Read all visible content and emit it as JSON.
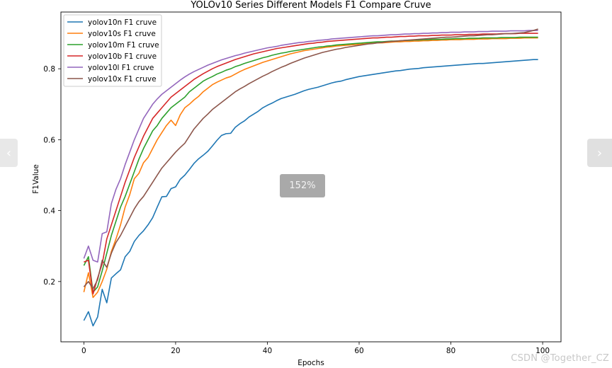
{
  "viewer": {
    "prev_icon": "chevron-left-icon",
    "next_icon": "chevron-right-icon",
    "prev_glyph": "‹",
    "next_glyph": "›",
    "zoom": "152%",
    "watermark": "CSDN @Together_CZ"
  },
  "chart_data": {
    "type": "line",
    "title": "YOLOv10 Series Different Models F1 Compare Cruve",
    "xlabel": "Epochs",
    "ylabel": "F1Value",
    "xlim": [
      -5,
      104
    ],
    "ylim": [
      0.03,
      0.96
    ],
    "xticks": [
      0,
      20,
      40,
      60,
      80,
      100
    ],
    "yticks": [
      0.2,
      0.4,
      0.6,
      0.8
    ],
    "grid": false,
    "legend_position": "top-left",
    "x": [
      0,
      1,
      2,
      3,
      4,
      5,
      6,
      7,
      8,
      9,
      10,
      11,
      12,
      13,
      14,
      15,
      16,
      17,
      18,
      19,
      20,
      21,
      22,
      23,
      24,
      25,
      26,
      27,
      28,
      29,
      30,
      31,
      32,
      33,
      34,
      35,
      36,
      37,
      38,
      39,
      40,
      41,
      42,
      43,
      44,
      45,
      46,
      47,
      48,
      49,
      50,
      51,
      52,
      53,
      54,
      55,
      56,
      57,
      58,
      59,
      60,
      61,
      62,
      63,
      64,
      65,
      66,
      67,
      68,
      69,
      70,
      71,
      72,
      73,
      74,
      75,
      76,
      77,
      78,
      79,
      80,
      81,
      82,
      83,
      84,
      85,
      86,
      87,
      88,
      89,
      90,
      91,
      92,
      93,
      94,
      95,
      96,
      97,
      98,
      99
    ],
    "series": [
      {
        "name": "yolov10n F1 cruve",
        "color": "#1f77b4",
        "values": [
          0.09,
          0.115,
          0.075,
          0.1,
          0.178,
          0.14,
          0.21,
          0.222,
          0.233,
          0.27,
          0.285,
          0.313,
          0.33,
          0.343,
          0.36,
          0.38,
          0.41,
          0.439,
          0.44,
          0.462,
          0.467,
          0.488,
          0.5,
          0.516,
          0.533,
          0.546,
          0.556,
          0.567,
          0.582,
          0.598,
          0.612,
          0.617,
          0.618,
          0.635,
          0.645,
          0.653,
          0.664,
          0.672,
          0.68,
          0.69,
          0.697,
          0.703,
          0.71,
          0.716,
          0.72,
          0.724,
          0.728,
          0.733,
          0.738,
          0.742,
          0.745,
          0.748,
          0.752,
          0.756,
          0.76,
          0.763,
          0.765,
          0.769,
          0.772,
          0.775,
          0.778,
          0.78,
          0.782,
          0.784,
          0.786,
          0.788,
          0.79,
          0.792,
          0.794,
          0.795,
          0.797,
          0.799,
          0.8,
          0.801,
          0.803,
          0.804,
          0.805,
          0.806,
          0.807,
          0.808,
          0.809,
          0.81,
          0.811,
          0.812,
          0.813,
          0.814,
          0.815,
          0.815,
          0.816,
          0.817,
          0.818,
          0.819,
          0.82,
          0.821,
          0.822,
          0.823,
          0.824,
          0.825,
          0.826,
          0.826
        ]
      },
      {
        "name": "yolov10s F1 cruve",
        "color": "#ff7f0e",
        "values": [
          0.17,
          0.225,
          0.155,
          0.17,
          0.2,
          0.235,
          0.285,
          0.32,
          0.36,
          0.41,
          0.445,
          0.49,
          0.505,
          0.535,
          0.55,
          0.575,
          0.6,
          0.62,
          0.64,
          0.655,
          0.64,
          0.67,
          0.69,
          0.7,
          0.712,
          0.722,
          0.735,
          0.745,
          0.755,
          0.762,
          0.768,
          0.774,
          0.778,
          0.785,
          0.792,
          0.798,
          0.803,
          0.808,
          0.813,
          0.818,
          0.822,
          0.826,
          0.83,
          0.834,
          0.838,
          0.842,
          0.845,
          0.848,
          0.851,
          0.853,
          0.855,
          0.857,
          0.859,
          0.861,
          0.862,
          0.864,
          0.865,
          0.866,
          0.867,
          0.868,
          0.869,
          0.87,
          0.871,
          0.872,
          0.873,
          0.873,
          0.874,
          0.875,
          0.876,
          0.876,
          0.877,
          0.877,
          0.878,
          0.878,
          0.879,
          0.879,
          0.88,
          0.88,
          0.881,
          0.881,
          0.882,
          0.882,
          0.882,
          0.883,
          0.883,
          0.883,
          0.884,
          0.884,
          0.884,
          0.885,
          0.885,
          0.885,
          0.885,
          0.886,
          0.886,
          0.886,
          0.887,
          0.887,
          0.887,
          0.887
        ]
      },
      {
        "name": "yolov10m F1 cruve",
        "color": "#2ca02c",
        "values": [
          0.245,
          0.27,
          0.17,
          0.185,
          0.23,
          0.28,
          0.33,
          0.37,
          0.41,
          0.44,
          0.475,
          0.51,
          0.545,
          0.575,
          0.6,
          0.625,
          0.64,
          0.66,
          0.675,
          0.69,
          0.7,
          0.71,
          0.72,
          0.735,
          0.745,
          0.755,
          0.765,
          0.772,
          0.778,
          0.785,
          0.79,
          0.796,
          0.8,
          0.806,
          0.81,
          0.815,
          0.819,
          0.823,
          0.827,
          0.831,
          0.834,
          0.838,
          0.841,
          0.844,
          0.846,
          0.849,
          0.851,
          0.853,
          0.855,
          0.857,
          0.859,
          0.861,
          0.862,
          0.864,
          0.865,
          0.867,
          0.868,
          0.869,
          0.87,
          0.871,
          0.872,
          0.873,
          0.874,
          0.875,
          0.876,
          0.876,
          0.877,
          0.878,
          0.878,
          0.879,
          0.88,
          0.88,
          0.881,
          0.881,
          0.882,
          0.882,
          0.883,
          0.883,
          0.883,
          0.884,
          0.884,
          0.885,
          0.885,
          0.885,
          0.886,
          0.886,
          0.886,
          0.887,
          0.887,
          0.887,
          0.887,
          0.888,
          0.888,
          0.888,
          0.888,
          0.889,
          0.889,
          0.889,
          0.889,
          0.889
        ]
      },
      {
        "name": "yolov10b F1 cruve",
        "color": "#d62728",
        "values": [
          0.255,
          0.26,
          0.165,
          0.21,
          0.25,
          0.32,
          0.36,
          0.4,
          0.44,
          0.48,
          0.515,
          0.55,
          0.58,
          0.61,
          0.635,
          0.66,
          0.675,
          0.69,
          0.705,
          0.72,
          0.73,
          0.74,
          0.75,
          0.76,
          0.77,
          0.778,
          0.786,
          0.793,
          0.8,
          0.806,
          0.811,
          0.816,
          0.821,
          0.826,
          0.83,
          0.834,
          0.838,
          0.842,
          0.845,
          0.848,
          0.851,
          0.854,
          0.857,
          0.859,
          0.861,
          0.863,
          0.865,
          0.867,
          0.869,
          0.871,
          0.872,
          0.874,
          0.875,
          0.877,
          0.878,
          0.879,
          0.88,
          0.881,
          0.882,
          0.883,
          0.884,
          0.885,
          0.886,
          0.887,
          0.887,
          0.888,
          0.889,
          0.889,
          0.89,
          0.891,
          0.891,
          0.892,
          0.892,
          0.893,
          0.893,
          0.893,
          0.894,
          0.894,
          0.895,
          0.895,
          0.895,
          0.896,
          0.896,
          0.896,
          0.897,
          0.897,
          0.897,
          0.898,
          0.898,
          0.898,
          0.898,
          0.899,
          0.899,
          0.899,
          0.899,
          0.9,
          0.9,
          0.9,
          0.9,
          0.9
        ]
      },
      {
        "name": "yolov10l F1 cruve",
        "color": "#9467bd",
        "values": [
          0.265,
          0.3,
          0.26,
          0.255,
          0.335,
          0.34,
          0.42,
          0.46,
          0.49,
          0.53,
          0.565,
          0.6,
          0.63,
          0.66,
          0.68,
          0.7,
          0.715,
          0.728,
          0.738,
          0.748,
          0.758,
          0.768,
          0.777,
          0.785,
          0.792,
          0.798,
          0.804,
          0.81,
          0.815,
          0.82,
          0.825,
          0.829,
          0.833,
          0.837,
          0.84,
          0.844,
          0.847,
          0.85,
          0.853,
          0.856,
          0.859,
          0.861,
          0.863,
          0.866,
          0.868,
          0.87,
          0.872,
          0.874,
          0.875,
          0.877,
          0.878,
          0.88,
          0.881,
          0.882,
          0.884,
          0.885,
          0.886,
          0.887,
          0.888,
          0.889,
          0.89,
          0.891,
          0.892,
          0.893,
          0.893,
          0.894,
          0.895,
          0.896,
          0.896,
          0.897,
          0.898,
          0.898,
          0.899,
          0.899,
          0.9,
          0.9,
          0.901,
          0.901,
          0.902,
          0.902,
          0.903,
          0.903,
          0.903,
          0.904,
          0.904,
          0.904,
          0.905,
          0.905,
          0.905,
          0.906,
          0.906,
          0.906,
          0.906,
          0.907,
          0.907,
          0.907,
          0.907,
          0.908,
          0.908,
          0.908
        ]
      },
      {
        "name": "yolov10x F1 cruve",
        "color": "#8c564b",
        "values": [
          0.185,
          0.2,
          0.18,
          0.205,
          0.26,
          0.24,
          0.28,
          0.31,
          0.33,
          0.355,
          0.38,
          0.405,
          0.425,
          0.44,
          0.46,
          0.48,
          0.5,
          0.52,
          0.535,
          0.55,
          0.565,
          0.578,
          0.59,
          0.61,
          0.63,
          0.645,
          0.66,
          0.672,
          0.685,
          0.695,
          0.705,
          0.715,
          0.725,
          0.735,
          0.743,
          0.75,
          0.758,
          0.765,
          0.772,
          0.779,
          0.785,
          0.792,
          0.798,
          0.804,
          0.809,
          0.815,
          0.82,
          0.825,
          0.83,
          0.834,
          0.838,
          0.842,
          0.846,
          0.849,
          0.852,
          0.855,
          0.857,
          0.86,
          0.862,
          0.864,
          0.866,
          0.868,
          0.87,
          0.871,
          0.873,
          0.874,
          0.876,
          0.877,
          0.878,
          0.879,
          0.88,
          0.881,
          0.882,
          0.883,
          0.884,
          0.885,
          0.886,
          0.887,
          0.888,
          0.889,
          0.889,
          0.89,
          0.891,
          0.892,
          0.893,
          0.893,
          0.894,
          0.895,
          0.896,
          0.896,
          0.897,
          0.898,
          0.899,
          0.899,
          0.9,
          0.901,
          0.902,
          0.905,
          0.908,
          0.912
        ]
      }
    ]
  }
}
